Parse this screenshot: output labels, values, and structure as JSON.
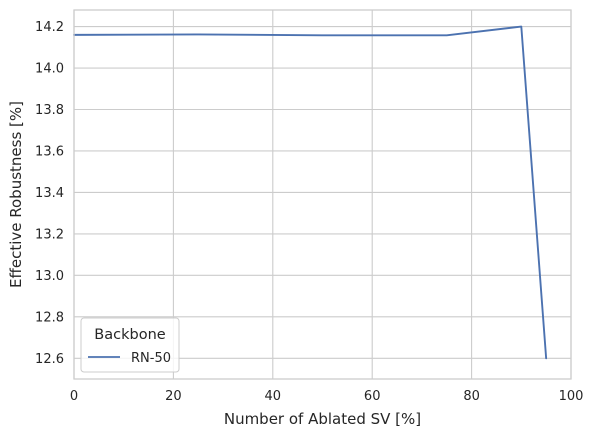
{
  "chart_data": {
    "type": "line",
    "title": "",
    "xlabel": "Number of Ablated SV [%]",
    "ylabel": "Effective Robustness [%]",
    "xlim": [
      0,
      100
    ],
    "ylim": [
      12.5,
      14.28
    ],
    "xticks": [
      0,
      20,
      40,
      60,
      80,
      100
    ],
    "xtick_labels": [
      "0",
      "20",
      "40",
      "60",
      "80",
      "100"
    ],
    "yticks": [
      12.6,
      12.8,
      13.0,
      13.2,
      13.4,
      13.6,
      13.8,
      14.0,
      14.2
    ],
    "ytick_labels": [
      "12.6",
      "12.8",
      "13.0",
      "13.2",
      "13.4",
      "13.6",
      "13.8",
      "14.0",
      "14.2"
    ],
    "grid": true,
    "legend": {
      "title": "Backbone",
      "placement": "lower-left"
    },
    "series": [
      {
        "name": "RN-50",
        "color": "#4c72b0",
        "x": [
          0,
          25,
          50,
          75,
          90,
          95
        ],
        "y": [
          14.16,
          14.162,
          14.158,
          14.158,
          14.2,
          12.6
        ]
      }
    ]
  }
}
